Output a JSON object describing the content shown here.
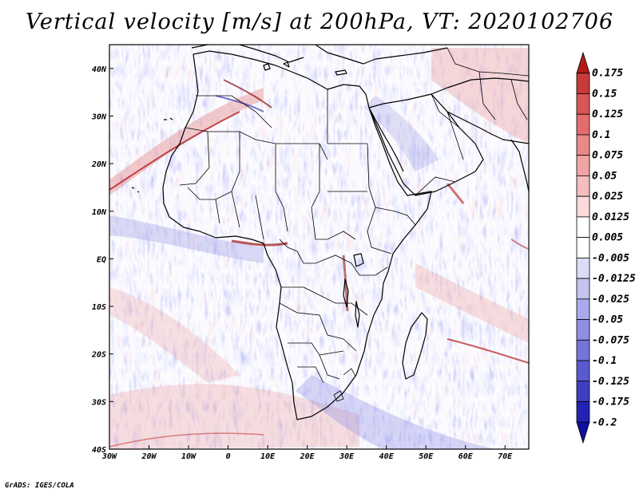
{
  "title": "Vertical velocity [m/s] at 200hPa, VT: 2020102706",
  "credit": "GrADS: IGES/COLA",
  "map": {
    "lon_range": [
      -30,
      76
    ],
    "lat_range": [
      -40,
      45
    ],
    "x_ticks": [
      {
        "lon": -30,
        "label": "30W"
      },
      {
        "lon": -20,
        "label": "20W"
      },
      {
        "lon": -10,
        "label": "10W"
      },
      {
        "lon": 0,
        "label": "0"
      },
      {
        "lon": 10,
        "label": "10E"
      },
      {
        "lon": 20,
        "label": "20E"
      },
      {
        "lon": 30,
        "label": "30E"
      },
      {
        "lon": 40,
        "label": "40E"
      },
      {
        "lon": 50,
        "label": "50E"
      },
      {
        "lon": 60,
        "label": "60E"
      },
      {
        "lon": 70,
        "label": "70E"
      }
    ],
    "y_ticks": [
      {
        "lat": 40,
        "label": "40N"
      },
      {
        "lat": 30,
        "label": "30N"
      },
      {
        "lat": 20,
        "label": "20N"
      },
      {
        "lat": 10,
        "label": "10N"
      },
      {
        "lat": 0,
        "label": "EQ"
      },
      {
        "lat": -10,
        "label": "10S"
      },
      {
        "lat": -20,
        "label": "20S"
      },
      {
        "lat": -30,
        "label": "30S"
      },
      {
        "lat": -40,
        "label": "40S"
      }
    ]
  },
  "colorbar": {
    "levels": [
      "0.175",
      "0.15",
      "0.125",
      "0.1",
      "0.075",
      "0.05",
      "0.025",
      "0.0125",
      "0.005",
      "-0.005",
      "-0.0125",
      "-0.025",
      "-0.05",
      "-0.075",
      "-0.1",
      "-0.125",
      "-0.175",
      "-0.2"
    ],
    "colors": [
      "#b31b1b",
      "#c93a3a",
      "#d95555",
      "#e36d6d",
      "#ea8888",
      "#f0a3a3",
      "#f5bebe",
      "#fadada",
      "#ffffff",
      "#ffffff",
      "#dcdcf8",
      "#c4c4f2",
      "#a9a9ec",
      "#8f8fe4",
      "#7474da",
      "#5a5ad0",
      "#3f3fc3",
      "#2323b3",
      "#1010a0"
    ]
  }
}
